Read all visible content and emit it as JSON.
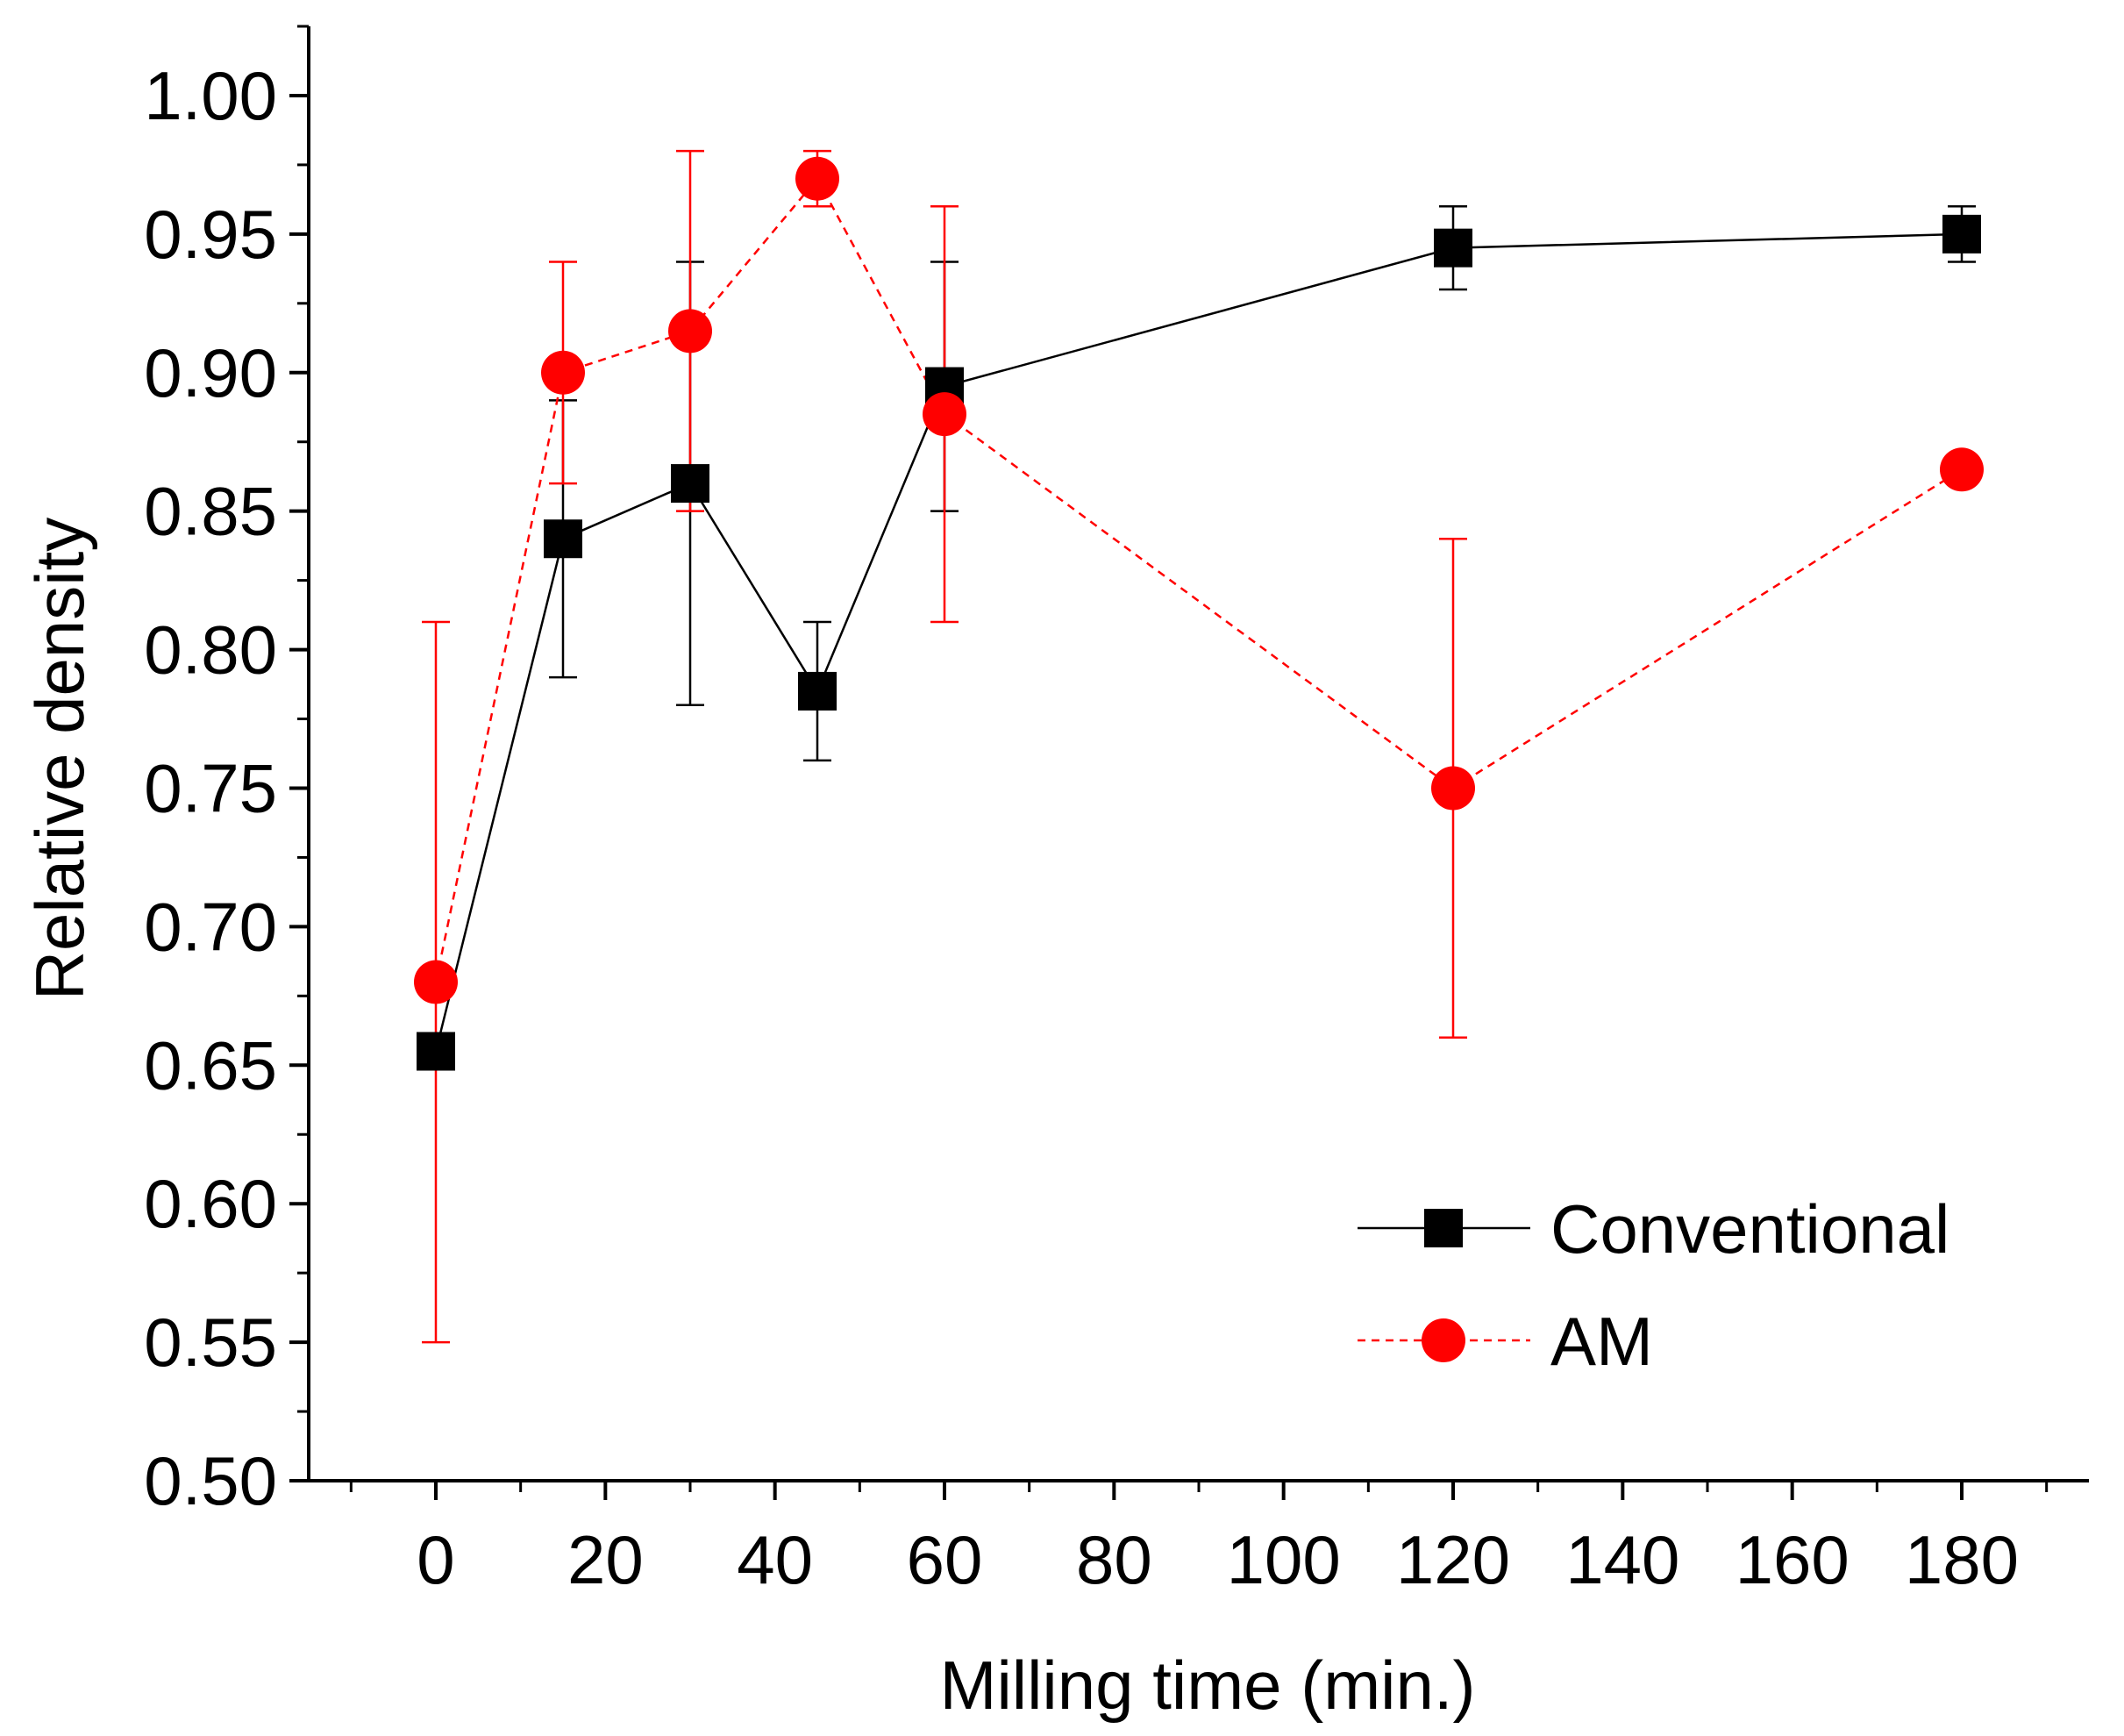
{
  "chart_data": {
    "type": "scatter",
    "title": "",
    "xlabel": "Milling time (min.)",
    "ylabel": "Relative density",
    "xlim": [
      -15,
      195
    ],
    "ylim": [
      0.5,
      1.025
    ],
    "xticks": [
      0,
      20,
      40,
      60,
      80,
      100,
      120,
      140,
      160,
      180
    ],
    "xtick_labels": [
      "0",
      "20",
      "40",
      "60",
      "80",
      "100",
      "120",
      "140",
      "160",
      "180"
    ],
    "yticks": [
      0.5,
      0.55,
      0.6,
      0.65,
      0.7,
      0.75,
      0.8,
      0.85,
      0.9,
      0.95,
      1.0
    ],
    "ytick_labels": [
      "0.50",
      "0.55",
      "0.60",
      "0.65",
      "0.70",
      "0.75",
      "0.80",
      "0.85",
      "0.90",
      "0.95",
      "1.00"
    ],
    "grid": false,
    "legend_position": "bottom-right",
    "series": [
      {
        "name": "Conventional",
        "color": "#000000",
        "marker": "square",
        "line_style": "solid",
        "x": [
          0,
          15,
          30,
          45,
          60,
          120,
          180
        ],
        "y": [
          0.655,
          0.84,
          0.86,
          0.785,
          0.895,
          0.945,
          0.95
        ],
        "error_low": [
          0.655,
          0.79,
          0.78,
          0.76,
          0.85,
          0.93,
          0.94
        ],
        "error_high": [
          0.655,
          0.89,
          0.94,
          0.81,
          0.94,
          0.96,
          0.96
        ]
      },
      {
        "name": "AM",
        "color": "#ff0000",
        "marker": "circle",
        "line_style": "dashed",
        "x": [
          0,
          15,
          30,
          45,
          60,
          120,
          180
        ],
        "y": [
          0.68,
          0.9,
          0.915,
          0.97,
          0.885,
          0.75,
          0.865
        ],
        "error_low": [
          0.55,
          0.86,
          0.85,
          0.96,
          0.81,
          0.66,
          0.865
        ],
        "error_high": [
          0.81,
          0.94,
          0.98,
          0.98,
          0.96,
          0.84,
          0.865
        ]
      }
    ]
  }
}
